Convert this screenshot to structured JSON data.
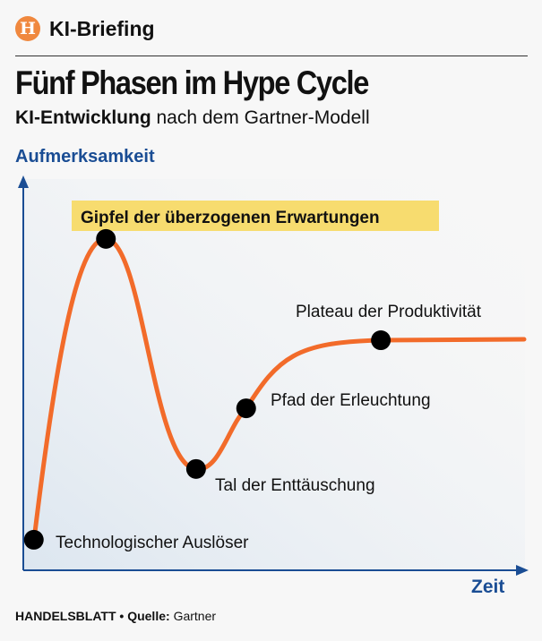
{
  "header": {
    "brand": "KI-Briefing",
    "logo_letter": "H",
    "title": "Fünf Phasen im Hype Cycle",
    "subtitle_bold": "KI-Entwicklung",
    "subtitle_rest": " nach dem Gartner-Modell"
  },
  "chart_data": {
    "type": "line",
    "title": "Fünf Phasen im Hype Cycle",
    "xlabel": "Zeit",
    "ylabel": "Aufmerksamkeit",
    "xlim": [
      0,
      100
    ],
    "ylim": [
      0,
      100
    ],
    "points": [
      {
        "label": "Technologischer Auslöser",
        "x": 2.1,
        "y": 7.8
      },
      {
        "label": "Gipfel der überzogenen Erwartungen",
        "x": 16.5,
        "y": 84.7
      },
      {
        "label": "Tal der Enttäuschung",
        "x": 34.5,
        "y": 25.9
      },
      {
        "label": "Pfad der Erleuchtung",
        "x": 44.5,
        "y": 41.4
      },
      {
        "label": "Plateau der Produktivität",
        "x": 71.4,
        "y": 58.8
      }
    ],
    "colors": {
      "curve": "#f26b2a",
      "axis": "#1a4d94",
      "highlight": "#f7dc6f"
    }
  },
  "footer": {
    "source_brand": "HANDELSBLATT",
    "bullet": "•",
    "source_label": "Quelle:",
    "source": "Gartner"
  }
}
